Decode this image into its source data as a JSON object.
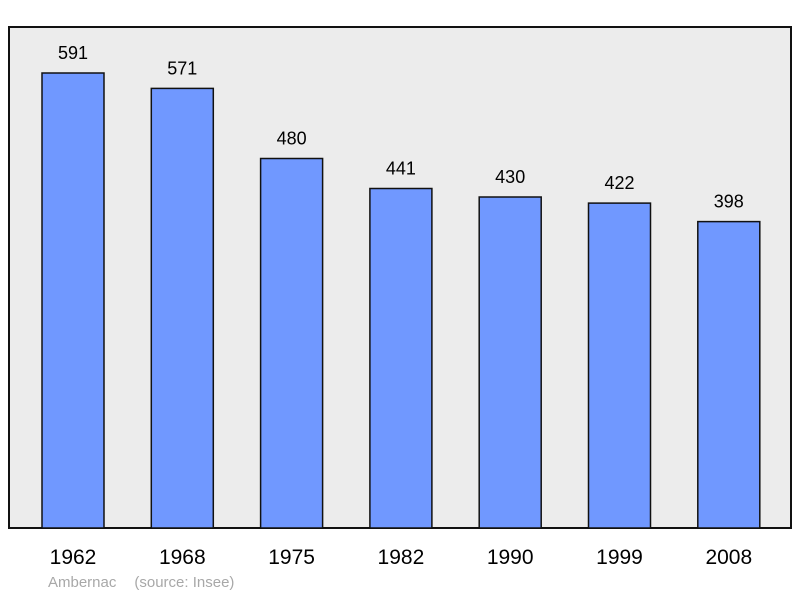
{
  "chart_data": {
    "type": "bar",
    "categories": [
      "1962",
      "1968",
      "1975",
      "1982",
      "1990",
      "1999",
      "2008"
    ],
    "values": [
      591,
      571,
      480,
      441,
      430,
      422,
      398
    ],
    "ylim": [
      0,
      650
    ],
    "grid": false,
    "colors": {
      "bar": "#7098ff",
      "bar_stroke": "#111111",
      "plot_bg": "#ececec",
      "frame": "#111111"
    }
  },
  "caption": {
    "place": "Ambernac",
    "source": "(source: Insee)"
  }
}
